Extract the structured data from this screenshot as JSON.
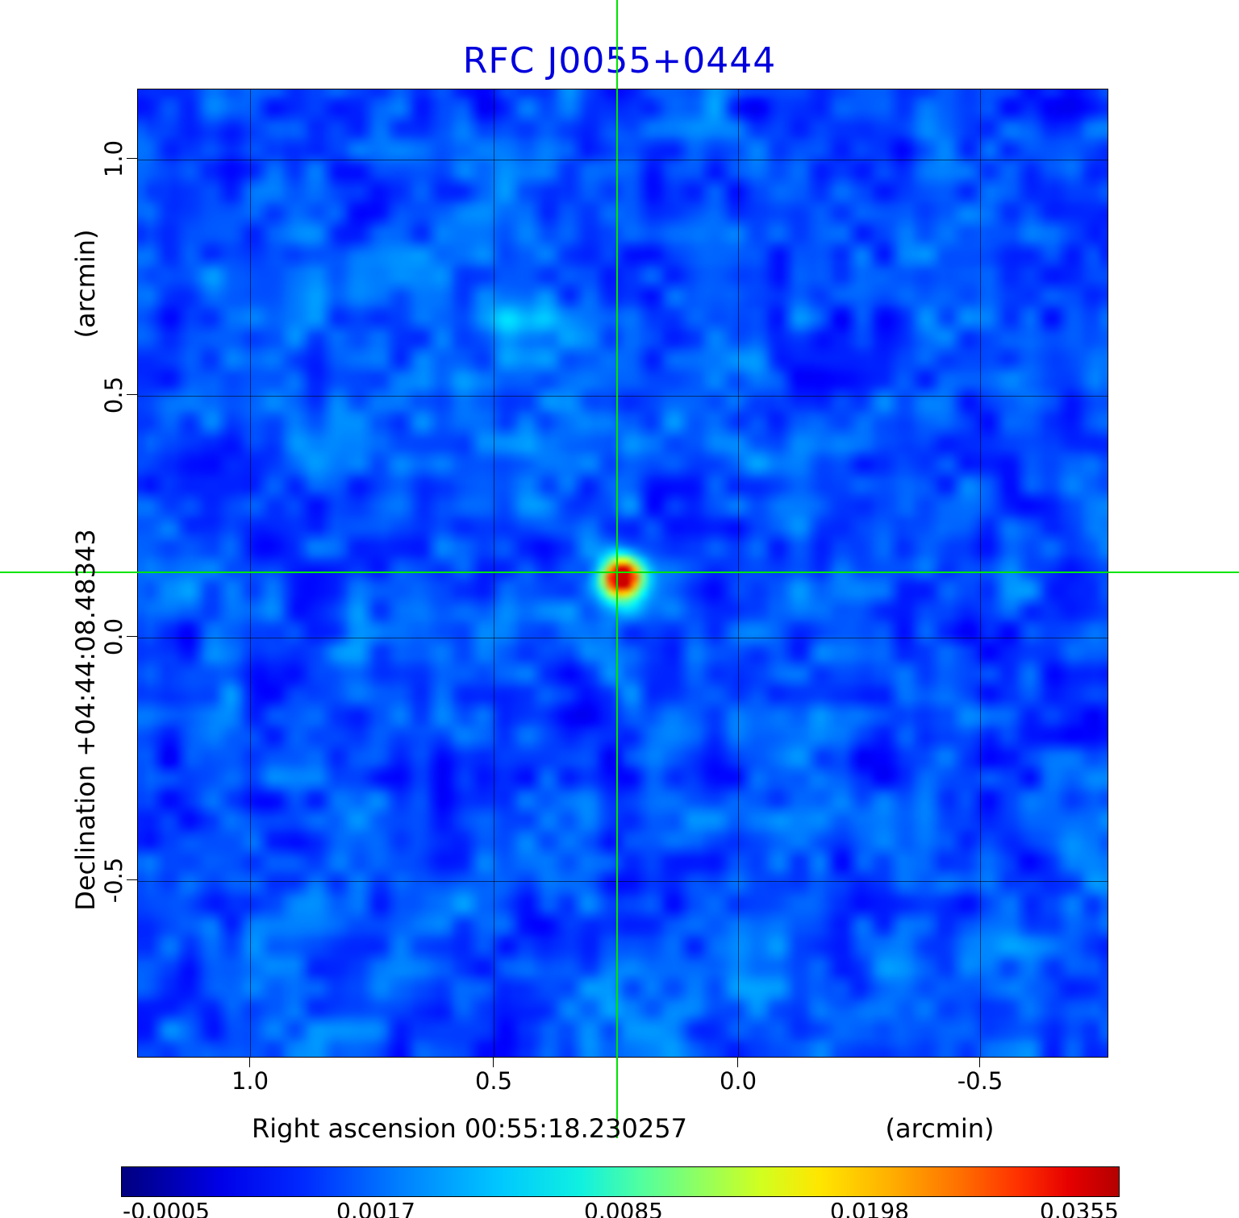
{
  "title": "RFC J0055+0444",
  "title_color": "#0000dd",
  "axes": {
    "y_unit": "(arcmin)",
    "y_label": "Declination  +04:44:08.48343",
    "y_ticks": [
      "1.0",
      "0.5",
      "0.0",
      "-0.5"
    ],
    "x_ticks": [
      "1.0",
      "0.5",
      "0.0",
      "-0.5"
    ],
    "x_label": "Right ascension  00:55:18.230257",
    "x_unit": "(arcmin)"
  },
  "colorbar": {
    "tick_labels": [
      "-0.0005",
      "0.0017",
      "0.0085",
      "0.0198",
      "0.0355"
    ]
  },
  "chart_data": {
    "type": "heatmap",
    "title": "RFC J0055+0444",
    "xlabel": "Right ascension 00:55:18.230257 (arcmin)",
    "ylabel": "Declination +04:44:08.48343 (arcmin)",
    "x_ticks": [
      1.0,
      0.5,
      0.0,
      -0.5
    ],
    "y_ticks": [
      1.0,
      0.5,
      0.0,
      -0.5
    ],
    "xlim": [
      1.23,
      -0.76
    ],
    "ylim": [
      -0.87,
      1.13
    ],
    "grid": true,
    "colormap": "jet",
    "colorbar_ticks": [
      -0.0005,
      0.0017,
      0.0085,
      0.0198,
      0.0355
    ],
    "value_range": [
      -0.0005,
      0.0355
    ],
    "background_mean": 0.0005,
    "peak_value": 0.0355,
    "source_offset_arcmin": {
      "ra": 0.25,
      "dec": 0.13
    },
    "secondary_blob_offset_arcmin": {
      "ra": 0.45,
      "dec": 0.65
    },
    "crosshair_color": "#00e400",
    "legend_position": "colorbar-bottom"
  }
}
